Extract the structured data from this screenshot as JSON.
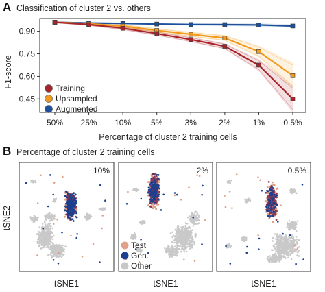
{
  "panel_a": {
    "letter": "A",
    "title": "Classification of cluster 2 vs. others",
    "ylabel": "F1-score",
    "xlabel": "Percentage of cluster 2 training cells",
    "yticks": [
      "0.90",
      "0.75",
      "0.60",
      "0.45"
    ],
    "legend": [
      {
        "label": "Training",
        "color": "#a8232a"
      },
      {
        "label": "Upsampled",
        "color": "#f29a1e"
      },
      {
        "label": "Augmented",
        "color": "#1c4f9c"
      }
    ]
  },
  "panel_b": {
    "letter": "B",
    "title": "Percentage of cluster 2 training cells",
    "ylabel": "tSNE2",
    "xlabel": "tSNE1",
    "plots": [
      {
        "corner": "10%"
      },
      {
        "corner": "2%"
      },
      {
        "corner": "0.5%"
      }
    ],
    "legend": [
      {
        "label": "Test",
        "color": "#e0a088"
      },
      {
        "label": "Gen.",
        "color": "#1c3f8f"
      },
      {
        "label": "Other",
        "color": "#c8c8c8"
      }
    ]
  },
  "chart_data": [
    {
      "type": "line",
      "title": "Classification of cluster 2 vs. others",
      "xlabel": "Percentage of cluster 2 training cells",
      "ylabel": "F1-score",
      "categories": [
        "50%",
        "25%",
        "10%",
        "5%",
        "3%",
        "2%",
        "1%",
        "0.5%"
      ],
      "ylim": [
        0.36,
        0.985
      ],
      "series": [
        {
          "name": "Training",
          "color": "#a8232a",
          "values": [
            0.96,
            0.945,
            0.92,
            0.885,
            0.845,
            0.8,
            0.675,
            0.45
          ]
        },
        {
          "name": "Upsampled",
          "color": "#f29a1e",
          "values": [
            0.96,
            0.95,
            0.935,
            0.905,
            0.88,
            0.855,
            0.765,
            0.605
          ]
        },
        {
          "name": "Augmented",
          "color": "#1c4f9c",
          "values": [
            0.96,
            0.955,
            0.952,
            0.948,
            0.945,
            0.944,
            0.942,
            0.935
          ]
        }
      ]
    },
    {
      "type": "scatter",
      "title": "Percentage of cluster 2 training cells",
      "xlabel": "tSNE1",
      "ylabel": "tSNE2",
      "panels": [
        "10%",
        "2%",
        "0.5%"
      ],
      "series": [
        "Test",
        "Gen.",
        "Other"
      ]
    }
  ]
}
